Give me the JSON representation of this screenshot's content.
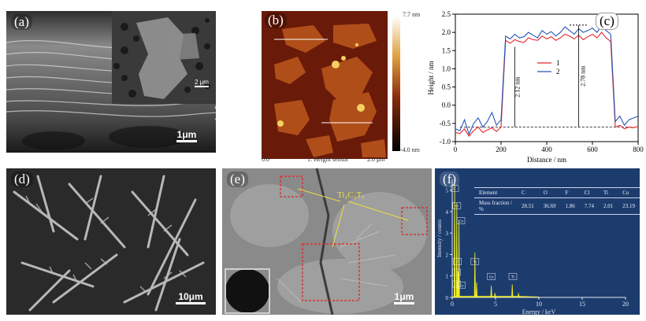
{
  "panels": {
    "a": {
      "label": "(a)",
      "scale": "1μm",
      "inset_scale": "2 μm"
    },
    "b": {
      "label": "(b)",
      "colorbar_max": "7.7 nm",
      "colorbar_min": "-4.0 nm",
      "axis_left": "0.0",
      "axis_mid": "1: Height sensor",
      "axis_right": "2.0 μm"
    },
    "c": {
      "label": "(c)"
    },
    "d": {
      "label": "(d)",
      "scale": "10μm"
    },
    "e": {
      "label": "(e)",
      "annotation": "Ti₃C₂Tₓ",
      "scale": "1μm"
    },
    "f": {
      "label": "(f)",
      "table": {
        "headers": [
          "Element",
          "C",
          "O",
          "F",
          "Cl",
          "Ti",
          "Co"
        ],
        "row_label": "Mass fraction / %",
        "values": [
          "28.51",
          "36.69",
          "1.86",
          "7.74",
          "2.01",
          "23.19"
        ]
      },
      "peaks": [
        "C",
        "O",
        "Co",
        "F",
        "Cl",
        "Ti",
        "Co",
        "Ti",
        "Co",
        "Cl"
      ],
      "xlabel": "Energy / keV",
      "ylabel": "Intensity / counts",
      "xticks": [
        "0",
        "5",
        "10",
        "15",
        "20"
      ],
      "yticks": [
        "0",
        "1",
        "2",
        "3",
        "4",
        "5"
      ]
    }
  },
  "chart_data": [
    {
      "type": "line",
      "panel": "c",
      "xlabel": "Distance / nm",
      "ylabel": "Height / nm",
      "xlim": [
        0,
        800
      ],
      "ylim": [
        -1.0,
        2.5
      ],
      "xticks": [
        "0",
        "200",
        "400",
        "600",
        "800"
      ],
      "yticks": [
        "-1.0",
        "-0.5",
        "0.0",
        "0.5",
        "1.0",
        "1.5",
        "2.0",
        "2.5"
      ],
      "annotations": [
        "2.12 nm",
        "2.78 nm"
      ],
      "legend": "top-center",
      "x": [
        0,
        20,
        40,
        60,
        80,
        100,
        120,
        140,
        160,
        180,
        200,
        220,
        240,
        260,
        280,
        300,
        320,
        340,
        360,
        380,
        400,
        420,
        440,
        460,
        480,
        500,
        520,
        540,
        560,
        580,
        600,
        620,
        640,
        660,
        680,
        700,
        720,
        740,
        760,
        780,
        800
      ],
      "series": [
        {
          "name": "1",
          "color": "#e8242a",
          "values": [
            -0.75,
            -0.78,
            -0.65,
            -0.85,
            -0.7,
            -0.6,
            -0.75,
            -0.68,
            -0.62,
            -0.72,
            -0.6,
            1.78,
            1.7,
            1.8,
            1.75,
            1.72,
            1.85,
            1.8,
            1.78,
            1.9,
            1.82,
            1.88,
            1.78,
            1.85,
            1.95,
            1.9,
            1.82,
            1.92,
            1.8,
            1.88,
            1.95,
            1.85,
            2.0,
            1.85,
            1.75,
            -0.6,
            -0.55,
            -0.65,
            -0.6,
            -0.62,
            -0.58
          ]
        },
        {
          "name": "2",
          "color": "#2456b8",
          "values": [
            -0.65,
            -0.7,
            -0.4,
            -0.8,
            -0.5,
            -0.35,
            -0.6,
            -0.45,
            -0.2,
            -0.55,
            -0.4,
            1.9,
            1.82,
            1.95,
            1.85,
            1.88,
            2.0,
            1.92,
            1.85,
            2.05,
            1.95,
            2.02,
            1.9,
            2.0,
            2.15,
            2.05,
            1.95,
            2.1,
            2.0,
            2.05,
            2.12,
            2.0,
            2.18,
            2.05,
            1.95,
            -0.45,
            -0.3,
            -0.55,
            -0.4,
            -0.35,
            -0.3
          ]
        }
      ]
    }
  ]
}
